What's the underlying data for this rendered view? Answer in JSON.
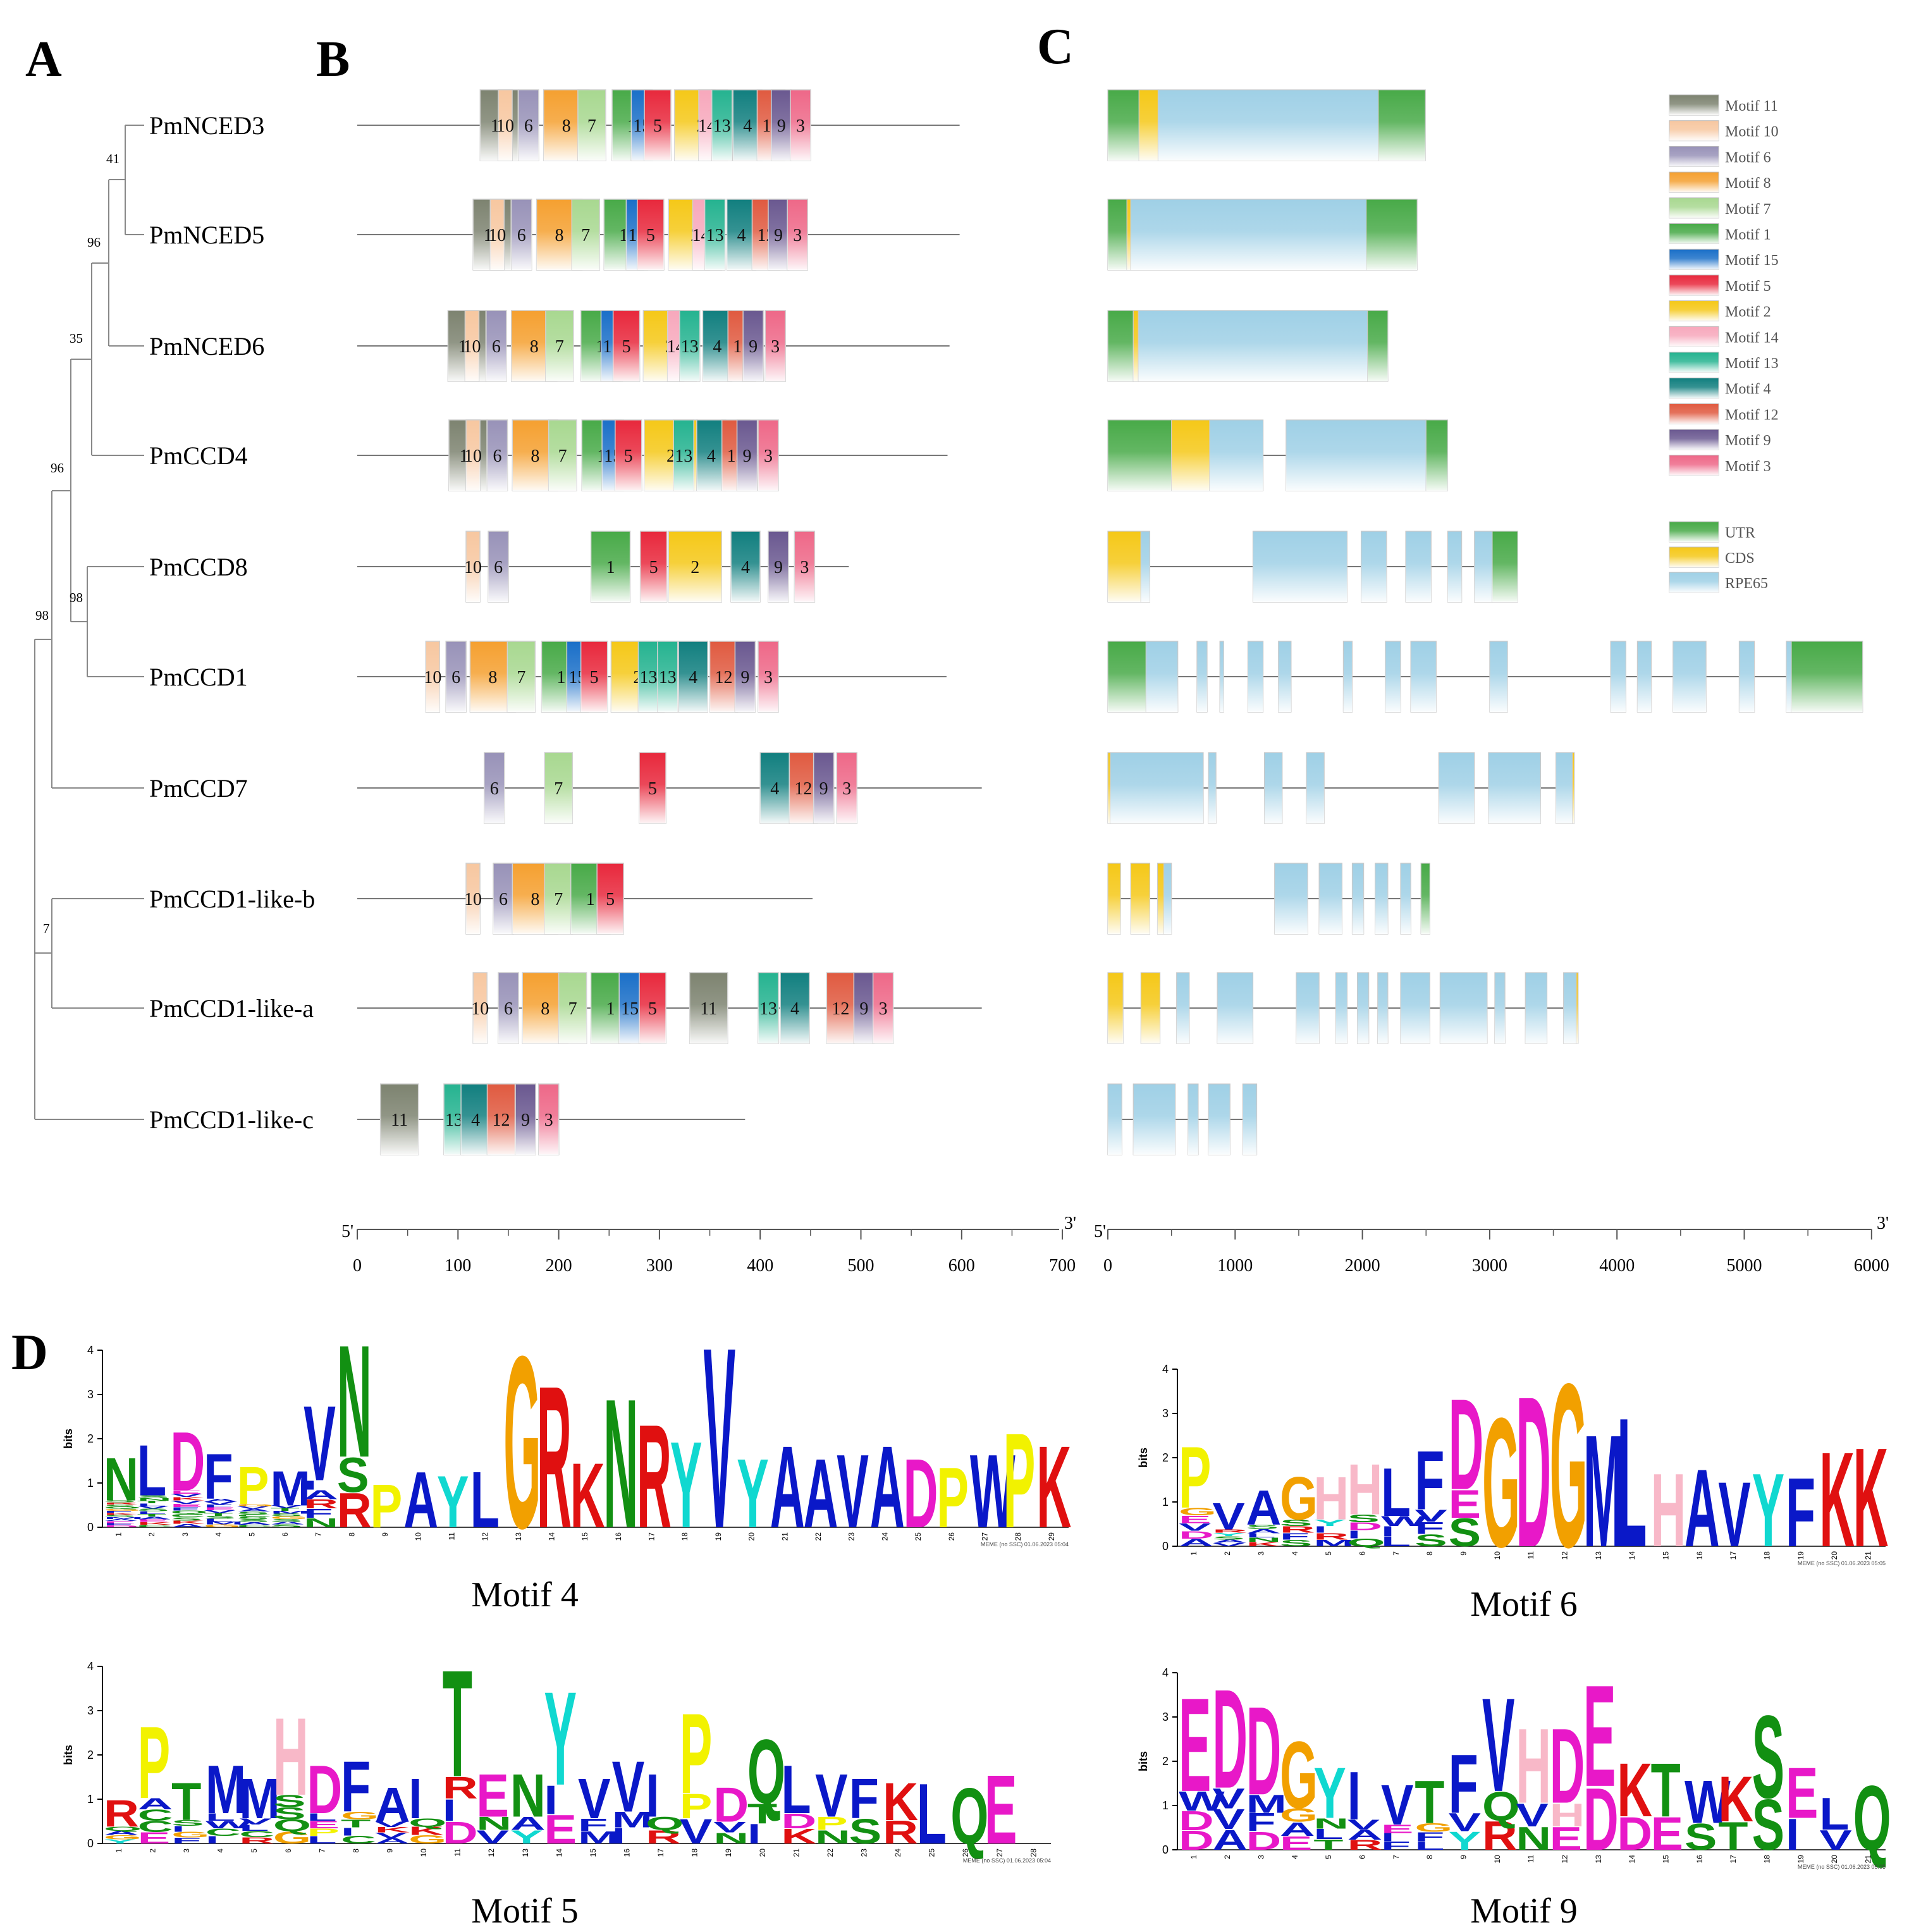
{
  "panels": {
    "a": "A",
    "b": "B",
    "c": "C",
    "d": "D"
  },
  "genes": [
    "PmNCED3",
    "PmNCED5",
    "PmNCED6",
    "PmCCD4",
    "PmCCD8",
    "PmCCD1",
    "PmCCD7",
    "PmCCD1-like-b",
    "PmCCD1-like-a",
    "PmCCD1-like-c"
  ],
  "bootstrap": {
    "n41": "41",
    "n96a": "96",
    "n35": "35",
    "n96b": "96",
    "n98a": "98",
    "n98b": "98",
    "n7": "7"
  },
  "motif_colors": {
    "11": "#7d8370",
    "10": "#f7c7a0",
    "6": "#9892b8",
    "8": "#f5a030",
    "7": "#a8d890",
    "1": "#48aa48",
    "15": "#1a6fc8",
    "5": "#e8283c",
    "2": "#f5c818",
    "14": "#f7a8bc",
    "13": "#25b390",
    "4": "#117f7f",
    "12": "#e05a40",
    "9": "#6a5890",
    "3": "#ee6888"
  },
  "motif_rows": [
    [
      [
        122,
        11
      ],
      [
        140,
        10
      ],
      [
        160,
        6
      ],
      [
        185,
        8
      ],
      [
        219,
        7
      ],
      [
        253,
        1
      ],
      [
        272,
        15
      ],
      [
        285,
        5
      ],
      [
        315,
        2
      ],
      [
        339,
        14
      ],
      [
        352,
        13
      ],
      [
        373,
        4
      ],
      [
        397,
        12
      ],
      [
        411,
        9
      ],
      [
        430,
        3
      ]
    ],
    [
      [
        115,
        11
      ],
      [
        132,
        10
      ],
      [
        153,
        6
      ],
      [
        178,
        8
      ],
      [
        213,
        7
      ],
      [
        245,
        1
      ],
      [
        267,
        15
      ],
      [
        278,
        5
      ],
      [
        309,
        2
      ],
      [
        333,
        14
      ],
      [
        345,
        13
      ],
      [
        367,
        4
      ],
      [
        392,
        12
      ],
      [
        408,
        9
      ],
      [
        427,
        3
      ]
    ],
    [
      [
        90,
        11
      ],
      [
        107,
        10
      ],
      [
        128,
        6
      ],
      [
        153,
        8
      ],
      [
        187,
        7
      ],
      [
        222,
        1
      ],
      [
        242,
        15
      ],
      [
        254,
        5
      ],
      [
        284,
        2
      ],
      [
        308,
        14
      ],
      [
        320,
        13
      ],
      [
        343,
        4
      ],
      [
        368,
        12
      ],
      [
        383,
        9
      ],
      [
        405,
        3
      ]
    ],
    [
      [
        91,
        11
      ],
      [
        108,
        10
      ],
      [
        129,
        6
      ],
      [
        154,
        8
      ],
      [
        190,
        7
      ],
      [
        223,
        1
      ],
      [
        243,
        15
      ],
      [
        256,
        5
      ],
      [
        285,
        2
      ],
      [
        314,
        13
      ],
      [
        337,
        4
      ],
      [
        362,
        12
      ],
      [
        377,
        9
      ],
      [
        398,
        3
      ]
    ],
    [
      [
        108,
        10
      ],
      [
        130,
        6
      ],
      [
        232,
        1
      ],
      [
        281,
        5
      ],
      [
        309,
        2
      ],
      [
        371,
        4
      ],
      [
        408,
        9
      ],
      [
        434,
        3
      ]
    ],
    [
      [
        68,
        10
      ],
      [
        88,
        6
      ],
      [
        112,
        8
      ],
      [
        149,
        7
      ],
      [
        183,
        1
      ],
      [
        208,
        15
      ],
      [
        222,
        5
      ],
      [
        252,
        2
      ],
      [
        279,
        13
      ],
      [
        298,
        13
      ],
      [
        319,
        4
      ],
      [
        350,
        12
      ],
      [
        375,
        9
      ],
      [
        398,
        3
      ]
    ],
    [
      [
        126,
        6
      ],
      [
        186,
        7
      ],
      [
        280,
        5
      ],
      [
        400,
        4
      ],
      [
        429,
        12
      ],
      [
        453,
        9
      ],
      [
        476,
        3
      ]
    ],
    [
      [
        108,
        10
      ],
      [
        135,
        6
      ],
      [
        154,
        8
      ],
      [
        186,
        7
      ],
      [
        212,
        1
      ],
      [
        238,
        5
      ]
    ],
    [
      [
        115,
        10
      ],
      [
        140,
        6
      ],
      [
        164,
        8
      ],
      [
        200,
        7
      ],
      [
        232,
        1
      ],
      [
        260,
        15
      ],
      [
        280,
        5
      ],
      [
        330,
        11
      ],
      [
        398,
        13
      ],
      [
        420,
        4
      ],
      [
        466,
        12
      ],
      [
        493,
        9
      ],
      [
        512,
        3
      ]
    ],
    [
      [
        23,
        11
      ],
      [
        86,
        13
      ],
      [
        103,
        4
      ],
      [
        129,
        12
      ],
      [
        157,
        9
      ],
      [
        180,
        3
      ]
    ]
  ],
  "structure_ids": [
    "#gs0",
    "#gs1",
    "#gs2",
    "#gs3",
    "#gs4",
    "#gs5",
    "#gs6",
    "#gs7",
    "#gs8",
    "#gs9"
  ],
  "legend_motifs": [
    "Motif 11",
    "Motif 10",
    "Motif 6",
    "Motif 8",
    "Motif 7",
    "Motif 1",
    "Motif 15",
    "Motif 5",
    "Motif 2",
    "Motif 14",
    "Motif 13",
    "Motif 4",
    "Motif 12",
    "Motif 9",
    "Motif 3"
  ],
  "legend_structure": [
    "UTR",
    "CDS",
    "RPE65"
  ],
  "structure_colors": {
    "UTR": "#48aa48",
    "CDS": "#f5c818",
    "RPE65": "#9fd0e6"
  },
  "axis_b": {
    "end5": "5'",
    "end3": "3'",
    "ticks": [
      "0",
      "100",
      "200",
      "300",
      "400",
      "500",
      "600",
      "700"
    ]
  },
  "axis_c": {
    "end5": "5'",
    "end3": "3'",
    "ticks": [
      "0",
      "1000",
      "2000",
      "3000",
      "4000",
      "5000",
      "6000"
    ]
  },
  "logos": {
    "motif4": {
      "caption": "Motif 4",
      "ylabel": "bits",
      "yticks": [
        "0",
        "1",
        "2",
        "3",
        "4"
      ],
      "meme": "MEME (no SSC) 01.06.2023 05:04",
      "consensus": "NLDFPMVNPAYLGRKNRYVYAAVADPWPK",
      "lower": [
        "SSEAGVI",
        "RNVVV",
        "STKFAT",
        "QLVESMAS",
        "GVEVCS",
        "F",
        "KSFT",
        "SLQSSG",
        "MTCLSSRR",
        "AASMAAF",
        "EEK",
        "FK",
        "DCAGCSN"
      ]
    },
    "motif6": {
      "caption": "Motif 6",
      "ylabel": "bits",
      "yticks": [
        "0",
        "1",
        "2",
        "3",
        "4"
      ],
      "meme": "MEME (no SSC) 01.06.2023 05:05",
      "consensus": "PVAGHHLFDGDGMLHAVYFKK",
      "lower": [
        "GRSSYSWV",
        "EYA",
        "VSLRID",
        "DANFRIIFE",
        "AVKSMQLSS"
      ]
    },
    "motif5": {
      "caption": "Motif 5",
      "ylabel": "bits",
      "yticks": [
        "0",
        "1",
        "2",
        "3",
        "4"
      ],
      "meme": "MEME (no SSC) 01.06.2023 05:04",
      "consensus": "RPTMMHDFAITENYVVIPDQLVFKLQE",
      "lower": [
        "QASLVSLGVQRNAIFMQPVTDPSR",
        "ACIWLSETKKIVYEMIRVNIKN",
        "GCGCCQPIV",
        "YEFIRGLCAGD"
      ]
    },
    "motif9": {
      "caption": "Motif 9",
      "ylabel": "bits",
      "yticks": [
        "0",
        "1",
        "2",
        "3",
        "4"
      ],
      "meme": "MEME (no SSC) 01.06.2023 05:05",
      "consensus": "EDDGYIVTFVHDEKTWKSELQ",
      "lower": [
        "WVMGNVEGVQVH",
        "DVFALAIFYRNEDDESTSIV",
        "DADETRFL"
      ]
    }
  }
}
